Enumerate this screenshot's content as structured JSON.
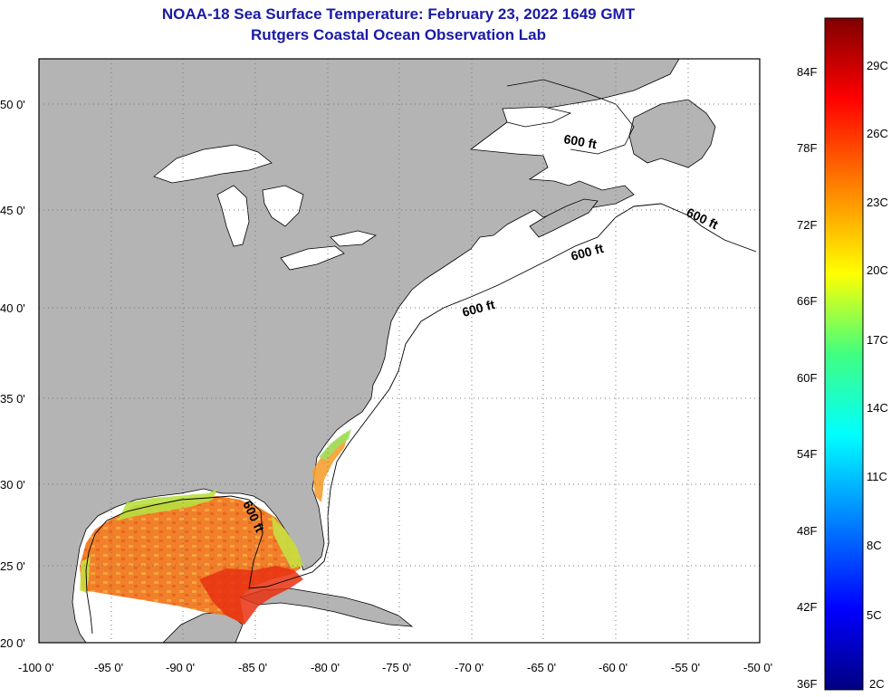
{
  "header": {
    "title_line1": "NOAA-18 Sea Surface Temperature:  February 23, 2022 1649 GMT",
    "title_line2": "Rutgers Coastal Ocean Observation Lab"
  },
  "map": {
    "lon_ticks": [
      "-100 0'",
      "-95 0'",
      "-90 0'",
      "-85 0'",
      "-80 0'",
      "-75 0'",
      "-70 0'",
      "-65 0'",
      "-60 0'",
      "-55 0'",
      "-50 0'"
    ],
    "lat_ticks": [
      "50 0'",
      "45 0'",
      "40 0'",
      "35 0'",
      "30 0'",
      "25 0'",
      "20 0'"
    ],
    "contour_labels": [
      "600 ft",
      "600 ft",
      "600 ft",
      "600 ft",
      "600 ft"
    ],
    "land_color": "#b4b4b4",
    "ocean_color": "#ffffff"
  },
  "colorbar": {
    "fahrenheit_labels": [
      "84F",
      "78F",
      "72F",
      "66F",
      "60F",
      "54F",
      "48F",
      "42F",
      "36F"
    ],
    "celsius_labels": [
      "29C",
      "26C",
      "23C",
      "20C",
      "17C",
      "14C",
      "11C",
      "8C",
      "5C",
      "2C"
    ],
    "colors": [
      "#000080",
      "#0000ff",
      "#0080ff",
      "#00ffff",
      "#40ff80",
      "#ffff00",
      "#ff8000",
      "#ff0000",
      "#800000"
    ]
  }
}
